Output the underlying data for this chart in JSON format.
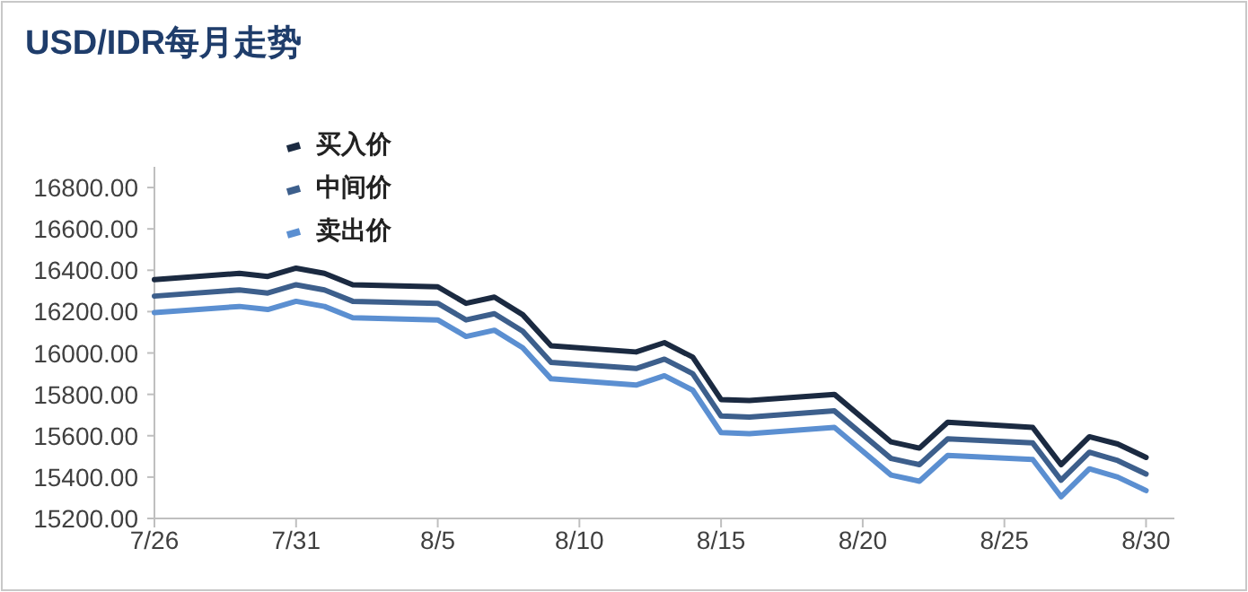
{
  "chart_data": {
    "type": "line",
    "title": "USD/IDR每月走势",
    "x": [
      "--07-26",
      "--07-29",
      "--07-30",
      "--07-31",
      "--08-01",
      "--08-02",
      "--08-05",
      "--08-06",
      "--08-07",
      "--08-08",
      "--08-09",
      "--08-12",
      "--08-13",
      "--08-14",
      "--08-15",
      "--08-16",
      "--08-19",
      "--08-21",
      "--08-22",
      "--08-23",
      "--08-26",
      "--08-27",
      "--08-28",
      "--08-29",
      "--08-30"
    ],
    "series": [
      {
        "name": "买入价",
        "color": "#1b2a41",
        "values": [
          16355,
          16385,
          16370,
          16410,
          16385,
          16330,
          16320,
          16240,
          16270,
          16185,
          16035,
          16005,
          16050,
          15980,
          15775,
          15770,
          15800,
          15570,
          15540,
          15665,
          15640,
          15460,
          15595,
          15560,
          15495
        ]
      },
      {
        "name": "中间价",
        "color": "#3d5f8c",
        "values": [
          16275,
          16305,
          16290,
          16330,
          16305,
          16250,
          16240,
          16160,
          16190,
          16105,
          15955,
          15925,
          15970,
          15900,
          15695,
          15690,
          15720,
          15490,
          15460,
          15585,
          15565,
          15385,
          15520,
          15480,
          15415
        ]
      },
      {
        "name": "卖出价",
        "color": "#5b8fd1",
        "values": [
          16195,
          16225,
          16210,
          16250,
          16225,
          16170,
          16160,
          16080,
          16110,
          16025,
          15875,
          15845,
          15890,
          15820,
          15615,
          15610,
          15640,
          15410,
          15380,
          15505,
          15485,
          15305,
          15440,
          15400,
          15335
        ]
      }
    ],
    "xlim": [
      "--07-26",
      "--08-31"
    ],
    "xticks": [
      {
        "value": "--07-26",
        "label": "7/26"
      },
      {
        "value": "--07-31",
        "label": "7/31"
      },
      {
        "value": "--08-05",
        "label": "8/5"
      },
      {
        "value": "--08-10",
        "label": "8/10"
      },
      {
        "value": "--08-15",
        "label": "8/15"
      },
      {
        "value": "--08-20",
        "label": "8/20"
      },
      {
        "value": "--08-25",
        "label": "8/25"
      },
      {
        "value": "--08-30",
        "label": "8/30"
      }
    ],
    "ylim": [
      15200,
      16900
    ],
    "yticks": [
      {
        "value": 15200,
        "label": "15200.00"
      },
      {
        "value": 15400,
        "label": "15400.00"
      },
      {
        "value": 15600,
        "label": "15600.00"
      },
      {
        "value": 15800,
        "label": "15800.00"
      },
      {
        "value": 16000,
        "label": "16000.00"
      },
      {
        "value": 16200,
        "label": "16200.00"
      },
      {
        "value": 16400,
        "label": "16400.00"
      },
      {
        "value": 16600,
        "label": "16600.00"
      },
      {
        "value": 16800,
        "label": "16800.00"
      }
    ],
    "legend": "top"
  }
}
